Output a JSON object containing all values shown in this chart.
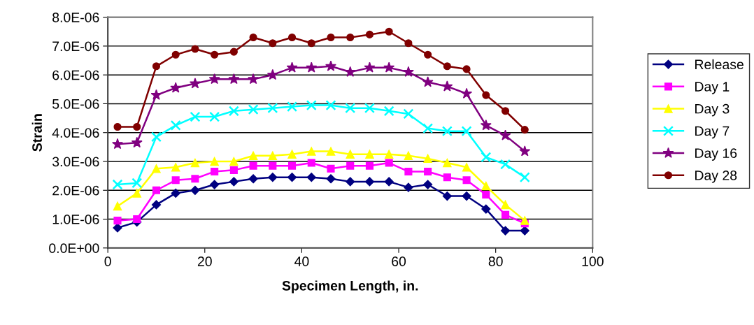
{
  "chart_data": {
    "type": "line",
    "xlabel": "Specimen Length, in.",
    "ylabel": "Strain",
    "x": [
      2,
      6,
      10,
      14,
      18,
      22,
      26,
      30,
      34,
      38,
      42,
      46,
      50,
      54,
      58,
      62,
      66,
      70,
      74,
      78,
      82,
      86
    ],
    "series": [
      {
        "name": "Release",
        "color": "#000080",
        "marker": "diamond",
        "values": [
          7e-07,
          9e-07,
          1.5e-06,
          1.9e-06,
          2e-06,
          2.2e-06,
          2.3e-06,
          2.4e-06,
          2.45e-06,
          2.45e-06,
          2.45e-06,
          2.4e-06,
          2.3e-06,
          2.3e-06,
          2.3e-06,
          2.1e-06,
          2.2e-06,
          1.8e-06,
          1.8e-06,
          1.35e-06,
          6e-07,
          6e-07
        ]
      },
      {
        "name": "Day 1",
        "color": "#ff00ff",
        "marker": "square",
        "values": [
          9.5e-07,
          1e-06,
          2e-06,
          2.35e-06,
          2.4e-06,
          2.65e-06,
          2.7e-06,
          2.85e-06,
          2.85e-06,
          2.85e-06,
          2.95e-06,
          2.75e-06,
          2.85e-06,
          2.85e-06,
          2.95e-06,
          2.65e-06,
          2.65e-06,
          2.45e-06,
          2.35e-06,
          1.85e-06,
          1.15e-06,
          8.5e-07
        ]
      },
      {
        "name": "Day 3",
        "color": "#ffff00",
        "marker": "triangle",
        "values": [
          1.45e-06,
          1.9e-06,
          2.75e-06,
          2.8e-06,
          2.95e-06,
          3e-06,
          3e-06,
          3.2e-06,
          3.2e-06,
          3.25e-06,
          3.35e-06,
          3.35e-06,
          3.25e-06,
          3.25e-06,
          3.25e-06,
          3.2e-06,
          3.1e-06,
          2.95e-06,
          2.8e-06,
          2.15e-06,
          1.5e-06,
          9.5e-07
        ]
      },
      {
        "name": "Day 7",
        "color": "#00ffff",
        "marker": "cross",
        "values": [
          2.2e-06,
          2.25e-06,
          3.85e-06,
          4.25e-06,
          4.55e-06,
          4.55e-06,
          4.75e-06,
          4.8e-06,
          4.85e-06,
          4.9e-06,
          4.95e-06,
          4.95e-06,
          4.85e-06,
          4.85e-06,
          4.75e-06,
          4.65e-06,
          4.15e-06,
          4.05e-06,
          4.05e-06,
          3.15e-06,
          2.9e-06,
          2.45e-06
        ]
      },
      {
        "name": "Day 16",
        "color": "#800080",
        "marker": "star",
        "values": [
          3.6e-06,
          3.65e-06,
          5.3e-06,
          5.55e-06,
          5.7e-06,
          5.85e-06,
          5.85e-06,
          5.85e-06,
          6e-06,
          6.25e-06,
          6.25e-06,
          6.3e-06,
          6.1e-06,
          6.25e-06,
          6.25e-06,
          6.1e-06,
          5.75e-06,
          5.6e-06,
          5.35e-06,
          4.25e-06,
          3.9e-06,
          3.35e-06
        ]
      },
      {
        "name": "Day 28",
        "color": "#800000",
        "marker": "circle",
        "values": [
          4.2e-06,
          4.2e-06,
          6.3e-06,
          6.7e-06,
          6.9e-06,
          6.7e-06,
          6.8e-06,
          7.3e-06,
          7.1e-06,
          7.3e-06,
          7.1e-06,
          7.3e-06,
          7.3e-06,
          7.4e-06,
          7.5e-06,
          7.1e-06,
          6.7e-06,
          6.3e-06,
          6.2e-06,
          5.3e-06,
          4.75e-06,
          4.1e-06
        ]
      }
    ],
    "xlim": [
      0,
      100
    ],
    "xticks": [
      0,
      20,
      40,
      60,
      80,
      100
    ],
    "ylim": [
      0,
      8e-06
    ],
    "yticks": [
      {
        "value": 0,
        "label": "0.0E+00"
      },
      {
        "value": 1e-06,
        "label": "1.0E-06"
      },
      {
        "value": 2e-06,
        "label": "2.0E-06"
      },
      {
        "value": 3e-06,
        "label": "3.0E-06"
      },
      {
        "value": 4e-06,
        "label": "4.0E-06"
      },
      {
        "value": 5e-06,
        "label": "5.0E-06"
      },
      {
        "value": 6e-06,
        "label": "6.0E-06"
      },
      {
        "value": 7e-06,
        "label": "7.0E-06"
      },
      {
        "value": 8e-06,
        "label": "8.0E-06"
      }
    ],
    "grid": "y",
    "legend": "right",
    "line_style": "solid"
  }
}
